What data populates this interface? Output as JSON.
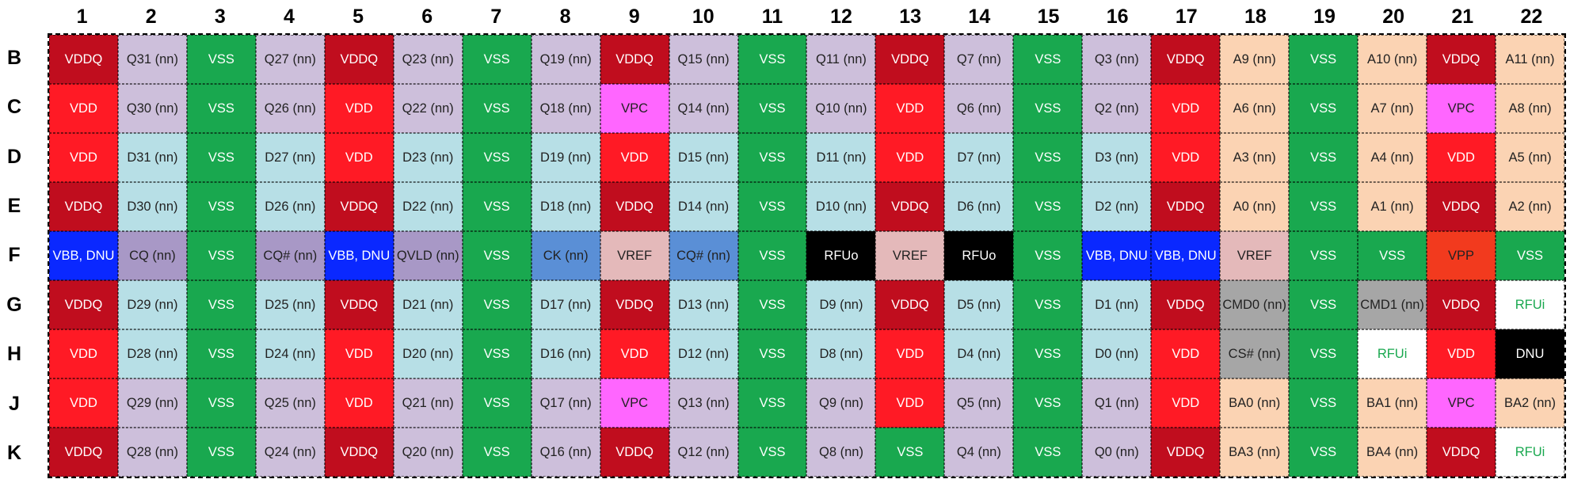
{
  "columns": [
    "1",
    "2",
    "3",
    "4",
    "5",
    "6",
    "7",
    "8",
    "9",
    "10",
    "11",
    "12",
    "13",
    "14",
    "15",
    "16",
    "17",
    "18",
    "19",
    "20",
    "21",
    "22"
  ],
  "rows": [
    {
      "label": "B",
      "cells": [
        "VDDQ",
        "Q31 (nn)",
        "VSS",
        "Q27 (nn)",
        "VDDQ",
        "Q23 (nn)",
        "VSS",
        "Q19 (nn)",
        "VDDQ",
        "Q15 (nn)",
        "VSS",
        "Q11 (nn)",
        "VDDQ",
        "Q7 (nn)",
        "VSS",
        "Q3 (nn)",
        "VDDQ",
        "A9 (nn)",
        "VSS",
        "A10 (nn)",
        "VDDQ",
        "A11 (nn)"
      ]
    },
    {
      "label": "C",
      "cells": [
        "VDD",
        "Q30 (nn)",
        "VSS",
        "Q26 (nn)",
        "VDD",
        "Q22 (nn)",
        "VSS",
        "Q18 (nn)",
        "VPC",
        "Q14 (nn)",
        "VSS",
        "Q10 (nn)",
        "VDD",
        "Q6 (nn)",
        "VSS",
        "Q2 (nn)",
        "VDD",
        "A6 (nn)",
        "VSS",
        "A7 (nn)",
        "VPC",
        "A8 (nn)"
      ]
    },
    {
      "label": "D",
      "cells": [
        "VDD",
        "D31 (nn)",
        "VSS",
        "D27 (nn)",
        "VDD",
        "D23 (nn)",
        "VSS",
        "D19 (nn)",
        "VDD",
        "D15 (nn)",
        "VSS",
        "D11 (nn)",
        "VDD",
        "D7 (nn)",
        "VSS",
        "D3 (nn)",
        "VDD",
        "A3 (nn)",
        "VSS",
        "A4 (nn)",
        "VDD",
        "A5 (nn)"
      ]
    },
    {
      "label": "E",
      "cells": [
        "VDDQ",
        "D30 (nn)",
        "VSS",
        "D26 (nn)",
        "VDDQ",
        "D22 (nn)",
        "VSS",
        "D18 (nn)",
        "VDDQ",
        "D14 (nn)",
        "VSS",
        "D10 (nn)",
        "VDDQ",
        "D6 (nn)",
        "VSS",
        "D2 (nn)",
        "VDDQ",
        "A0 (nn)",
        "VSS",
        "A1 (nn)",
        "VDDQ",
        "A2 (nn)"
      ]
    },
    {
      "label": "F",
      "cells": [
        "VBB, DNU",
        "CQ (nn)",
        "VSS",
        "CQ# (nn)",
        "VBB, DNU",
        "QVLD (nn)",
        "VSS",
        "CK (nn)",
        "VREF",
        "CQ# (nn)",
        "VSS",
        "RFUo",
        "VREF",
        "RFUo",
        "VSS",
        "VBB, DNU",
        "VBB, DNU",
        "VREF",
        "VSS",
        "VSS",
        "VPP",
        "VSS"
      ]
    },
    {
      "label": "G",
      "cells": [
        "VDDQ",
        "D29 (nn)",
        "VSS",
        "D25 (nn)",
        "VDDQ",
        "D21 (nn)",
        "VSS",
        "D17 (nn)",
        "VDDQ",
        "D13 (nn)",
        "VSS",
        "D9 (nn)",
        "VDDQ",
        "D5 (nn)",
        "VSS",
        "D1 (nn)",
        "VDDQ",
        "CMD0 (nn)",
        "VSS",
        "CMD1 (nn)",
        "VDDQ",
        "RFUi"
      ]
    },
    {
      "label": "H",
      "cells": [
        "VDD",
        "D28 (nn)",
        "VSS",
        "D24 (nn)",
        "VDD",
        "D20 (nn)",
        "VSS",
        "D16 (nn)",
        "VDD",
        "D12 (nn)",
        "VSS",
        "D8 (nn)",
        "VDD",
        "D4 (nn)",
        "VSS",
        "D0 (nn)",
        "VDD",
        "CS# (nn)",
        "VSS",
        "RFUi",
        "VDD",
        "DNU"
      ]
    },
    {
      "label": "J",
      "cells": [
        "VDD",
        "Q29 (nn)",
        "VSS",
        "Q25 (nn)",
        "VDD",
        "Q21 (nn)",
        "VSS",
        "Q17 (nn)",
        "VPC",
        "Q13 (nn)",
        "VSS",
        "Q9 (nn)",
        "VDD",
        "Q5 (nn)",
        "VSS",
        "Q1 (nn)",
        "VDD",
        "BA0 (nn)",
        "VSS",
        "BA1 (nn)",
        "VPC",
        "BA2 (nn)"
      ]
    },
    {
      "label": "K",
      "cells": [
        "VDDQ",
        "Q28 (nn)",
        "VSS",
        "Q24 (nn)",
        "VDDQ",
        "Q20 (nn)",
        "VSS",
        "Q16 (nn)",
        "VDDQ",
        "Q12 (nn)",
        "VSS",
        "Q8 (nn)",
        "VSS",
        "Q4 (nn)",
        "VSS",
        "Q0 (nn)",
        "VDDQ",
        "BA3 (nn)",
        "VSS",
        "BA4 (nn)",
        "VDDQ",
        "RFUi"
      ]
    }
  ],
  "colors": {
    "VDDQ": {
      "bg": "#c00d1e",
      "fg": "#ffffff"
    },
    "VDD": {
      "bg": "#ff1a25",
      "fg": "#ffffff"
    },
    "VSS": {
      "bg": "#19a84f",
      "fg": "#ffffff"
    },
    "VPC": {
      "bg": "#ff66ff",
      "fg": "#222222"
    },
    "VBB, DNU": {
      "bg": "#0a28ff",
      "fg": "#ffffff"
    },
    "VREF": {
      "bg": "#e4b9ba",
      "fg": "#222222"
    },
    "RFUo": {
      "bg": "#000000",
      "fg": "#ffffff"
    },
    "RFUi": {
      "bg": "#ffffff",
      "fg": "#19a84f"
    },
    "DNU": {
      "bg": "#000000",
      "fg": "#ffffff"
    },
    "VPP": {
      "bg": "#f23a1e",
      "fg": "#222222"
    },
    "CK (nn)": {
      "bg": "#5a8fd6",
      "fg": "#222222"
    },
    "CQ# (nn)@F4": {
      "bg": "#a898c6",
      "fg": "#222222"
    },
    "CQ# (nn)@F10": {
      "bg": "#5a8fd6",
      "fg": "#222222"
    },
    "CQ (nn)": {
      "bg": "#a898c6",
      "fg": "#222222"
    },
    "QVLD (nn)": {
      "bg": "#a898c6",
      "fg": "#222222"
    },
    "CMD": {
      "bg": "#a6a6a6",
      "fg": "#222222"
    },
    "Q": {
      "bg": "#cdbfdb",
      "fg": "#222222"
    },
    "D": {
      "bg": "#b7dfe6",
      "fg": "#222222"
    },
    "A": {
      "bg": "#fbd3b3",
      "fg": "#222222"
    }
  }
}
